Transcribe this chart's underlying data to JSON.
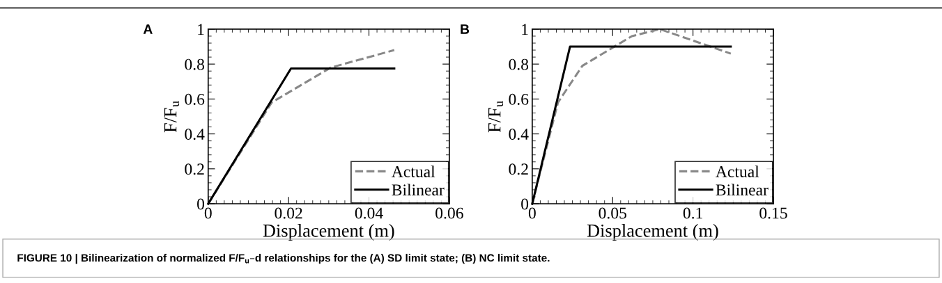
{
  "chart_data": [
    {
      "type": "line",
      "title": "A",
      "xlabel": "Displacement (m)",
      "ylabel": "F/F$_{u}$",
      "xlim": [
        0,
        0.06
      ],
      "xticks": [
        0,
        0.02,
        0.04,
        {
          "value": 0.06,
          "label": "0.06"
        }
      ],
      "ylim": [
        0,
        1
      ],
      "yticks": [
        0,
        0.2,
        0.4,
        0.6,
        0.8,
        1
      ],
      "legend": "bottom right",
      "grid": false,
      "annotations": [
        "FIGURE 10 | Bilinearization of normalized F/F$_{u}$–d relationships for the (A) SD limit state; (B) NC limit state."
      ],
      "series": [
        {
          "name": "Actual",
          "color": "#888888",
          "line_style": "dashed",
          "x": [
            0,
            0.0158,
            0.0305,
            0.0463
          ],
          "values": [
            0,
            0.58,
            0.78,
            0.88
          ]
        },
        {
          "name": "Bilinear",
          "color": "#000000",
          "line_style": "solid",
          "x": [
            0,
            0.0206,
            0.0463
          ],
          "values": [
            0,
            0.775,
            0.775
          ]
        }
      ]
    },
    {
      "type": "line",
      "title": "B",
      "xlabel": "Displacement (m)",
      "ylabel": "F/F$_{u}$",
      "xlim": [
        0,
        0.15
      ],
      "xticks": [
        0,
        0.05,
        0.1,
        0.15
      ],
      "ylim": [
        0,
        1
      ],
      "yticks": [
        0,
        0.2,
        0.4,
        0.6,
        0.8,
        1
      ],
      "legend": "bottom right",
      "grid": false,
      "series": [
        {
          "name": "Actual",
          "color": "#888888",
          "line_style": "dashed",
          "x": [
            0,
            0.016,
            0.0312,
            0.062,
            0.0794,
            0.1235
          ],
          "values": [
            0,
            0.58,
            0.79,
            0.96,
            1.0,
            0.86
          ]
        },
        {
          "name": "Bilinear",
          "color": "#000000",
          "line_style": "solid",
          "x": [
            0,
            0.0235,
            0.1235
          ],
          "values": [
            0,
            0.9,
            0.9
          ]
        }
      ]
    }
  ]
}
